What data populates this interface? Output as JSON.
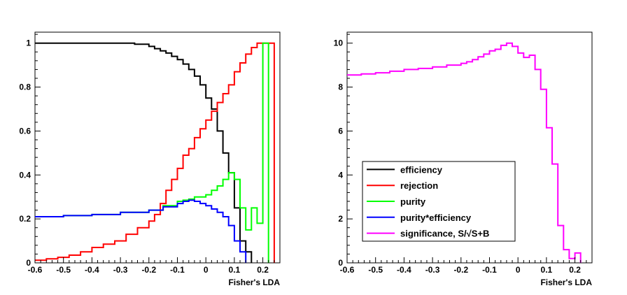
{
  "chart_data": [
    {
      "type": "line",
      "step": true,
      "xlabel": "Fisher's LDA",
      "ylabel": "",
      "xlim": [
        -0.6,
        0.26
      ],
      "ylim": [
        0,
        1.05
      ],
      "xticks": [
        -0.6,
        -0.5,
        -0.4,
        -0.3,
        -0.2,
        -0.1,
        0,
        0.1,
        0.2
      ],
      "xtick_labels": [
        "-0.6",
        "-0.5",
        "-0.4",
        "-0.3",
        "-0.2",
        "-0.1",
        "0",
        "0.1",
        "0.2"
      ],
      "yticks": [
        0,
        0.2,
        0.4,
        0.6,
        0.8,
        1
      ],
      "ytick_labels": [
        "0",
        "0.2",
        "0.4",
        "0.6",
        "0.8",
        "1"
      ],
      "grid": false,
      "series": [
        {
          "key": "efficiency",
          "color": "#000000",
          "x": [
            -0.6,
            -0.55,
            -0.5,
            -0.45,
            -0.4,
            -0.35,
            -0.3,
            -0.25,
            -0.2,
            -0.18,
            -0.16,
            -0.14,
            -0.12,
            -0.1,
            -0.08,
            -0.06,
            -0.04,
            -0.02,
            0.0,
            0.02,
            0.04,
            0.06,
            0.08,
            0.1,
            0.12,
            0.14,
            0.16
          ],
          "values": [
            1.0,
            1.0,
            1.0,
            1.0,
            1.0,
            1.0,
            1.0,
            0.995,
            0.985,
            0.975,
            0.965,
            0.955,
            0.94,
            0.925,
            0.905,
            0.88,
            0.85,
            0.81,
            0.75,
            0.7,
            0.6,
            0.5,
            0.41,
            0.25,
            0.1,
            0.05,
            0.0
          ]
        },
        {
          "key": "rejection",
          "color": "#ff0000",
          "x": [
            -0.6,
            -0.56,
            -0.52,
            -0.48,
            -0.44,
            -0.4,
            -0.36,
            -0.32,
            -0.28,
            -0.24,
            -0.2,
            -0.18,
            -0.16,
            -0.14,
            -0.12,
            -0.1,
            -0.08,
            -0.06,
            -0.04,
            -0.02,
            0.0,
            0.02,
            0.04,
            0.06,
            0.08,
            0.1,
            0.12,
            0.14,
            0.16,
            0.18,
            0.2,
            0.22,
            0.24
          ],
          "values": [
            0.012,
            0.018,
            0.025,
            0.035,
            0.05,
            0.07,
            0.085,
            0.1,
            0.13,
            0.16,
            0.19,
            0.22,
            0.27,
            0.33,
            0.38,
            0.43,
            0.49,
            0.52,
            0.57,
            0.61,
            0.65,
            0.69,
            0.73,
            0.77,
            0.81,
            0.87,
            0.91,
            0.95,
            0.98,
            1.0,
            1.0,
            1.0,
            0.0
          ]
        },
        {
          "key": "purity",
          "color": "#00ff00",
          "x": [
            -0.6,
            -0.5,
            -0.4,
            -0.3,
            -0.2,
            -0.15,
            -0.1,
            -0.08,
            -0.06,
            -0.04,
            -0.02,
            0.0,
            0.02,
            0.04,
            0.06,
            0.08,
            0.1,
            0.12,
            0.14,
            0.16,
            0.18,
            0.2,
            0.22
          ],
          "values": [
            0.21,
            0.215,
            0.22,
            0.23,
            0.24,
            0.26,
            0.28,
            0.285,
            0.29,
            0.3,
            0.3,
            0.31,
            0.33,
            0.35,
            0.38,
            0.41,
            0.38,
            0.25,
            0.15,
            0.25,
            0.18,
            1.0,
            0.0
          ]
        },
        {
          "key": "purity*efficiency",
          "color": "#0000ff",
          "x": [
            -0.6,
            -0.5,
            -0.4,
            -0.3,
            -0.2,
            -0.15,
            -0.1,
            -0.08,
            -0.06,
            -0.04,
            -0.02,
            0.0,
            0.02,
            0.04,
            0.06,
            0.08,
            0.1,
            0.12,
            0.14
          ],
          "values": [
            0.21,
            0.215,
            0.22,
            0.23,
            0.24,
            0.255,
            0.27,
            0.28,
            0.285,
            0.28,
            0.27,
            0.26,
            0.245,
            0.23,
            0.21,
            0.17,
            0.1,
            0.05,
            0.0
          ]
        }
      ]
    },
    {
      "type": "line",
      "step": true,
      "xlabel": "Fisher's LDA",
      "ylabel": "",
      "xlim": [
        -0.6,
        0.26
      ],
      "ylim": [
        0,
        10.5
      ],
      "xticks": [
        -0.6,
        -0.5,
        -0.4,
        -0.3,
        -0.2,
        -0.1,
        0,
        0.1,
        0.2
      ],
      "xtick_labels": [
        "-0.6",
        "-0.5",
        "-0.4",
        "-0.3",
        "-0.2",
        "-0.1",
        "0",
        "0.1",
        "0.2"
      ],
      "yticks": [
        0,
        2,
        4,
        6,
        8,
        10
      ],
      "ytick_labels": [
        "0",
        "2",
        "4",
        "6",
        "8",
        "10"
      ],
      "grid": false,
      "legend": {
        "placement": "lower-left",
        "entries": [
          {
            "label": "efficiency",
            "color": "#000000"
          },
          {
            "label": "rejection",
            "color": "#ff0000"
          },
          {
            "label": "purity",
            "color": "#00ff00"
          },
          {
            "label": "purity*efficiency",
            "color": "#0000ff"
          },
          {
            "label": "significance, S/√S+B",
            "color": "#ff00ff"
          }
        ]
      },
      "series": [
        {
          "key": "significance",
          "color": "#ff00ff",
          "x": [
            -0.6,
            -0.55,
            -0.5,
            -0.45,
            -0.4,
            -0.35,
            -0.3,
            -0.25,
            -0.2,
            -0.18,
            -0.16,
            -0.14,
            -0.12,
            -0.1,
            -0.08,
            -0.06,
            -0.04,
            -0.02,
            0.0,
            0.02,
            0.04,
            0.06,
            0.08,
            0.1,
            0.12,
            0.14,
            0.16,
            0.18,
            0.2,
            0.22
          ],
          "values": [
            8.55,
            8.6,
            8.65,
            8.72,
            8.8,
            8.85,
            8.92,
            9.0,
            9.08,
            9.15,
            9.25,
            9.38,
            9.5,
            9.65,
            9.72,
            9.9,
            10.0,
            9.85,
            9.55,
            9.35,
            9.45,
            8.8,
            7.9,
            6.15,
            4.5,
            1.7,
            0.6,
            0.2,
            0.45,
            0.0
          ]
        }
      ]
    }
  ]
}
